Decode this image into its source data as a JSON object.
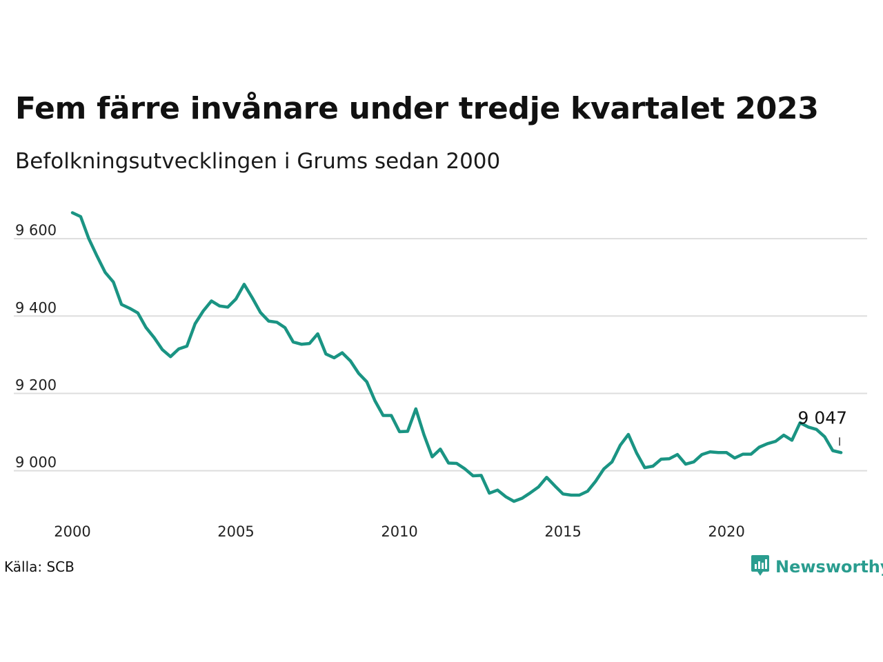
{
  "title": "Fem färre invånare under tredje kvartalet 2023",
  "subtitle": "Befolkningsutvecklingen i Grums sedan 2000",
  "source": "Källa: SCB",
  "brand": {
    "name": "Newsworthy",
    "icon": "newsworthy-logo-icon",
    "color": "#2a9d8f"
  },
  "colors": {
    "line": "#1a9483",
    "grid": "#dddddd",
    "text": "#111111"
  },
  "chart_data": {
    "type": "line",
    "title": "Fem färre invånare under tredje kvartalet 2023",
    "subtitle": "Befolkningsutvecklingen i Grums sedan 2000",
    "xlabel": "",
    "ylabel": "",
    "xlim": [
      2000,
      2024.3
    ],
    "ylim": [
      8880,
      9700
    ],
    "x_ticks": [
      2000,
      2005,
      2010,
      2015,
      2020
    ],
    "x_tick_labels": [
      "2000",
      "2005",
      "2010",
      "2015",
      "2020"
    ],
    "y_ticks": [
      9000,
      9200,
      9400,
      9600
    ],
    "y_tick_labels": [
      "9 000",
      "9 200",
      "9 400",
      "9 600"
    ],
    "grid": "horizontal",
    "legend": "none",
    "x": [
      2000.0,
      2000.25,
      2000.5,
      2000.75,
      2001.0,
      2001.25,
      2001.5,
      2001.75,
      2002.0,
      2002.25,
      2002.5,
      2002.75,
      2003.0,
      2003.25,
      2003.5,
      2003.75,
      2004.0,
      2004.25,
      2004.5,
      2004.75,
      2005.0,
      2005.25,
      2005.5,
      2005.75,
      2006.0,
      2006.25,
      2006.5,
      2006.75,
      2007.0,
      2007.25,
      2007.5,
      2007.75,
      2008.0,
      2008.25,
      2008.5,
      2008.75,
      2009.0,
      2009.25,
      2009.5,
      2009.75,
      2010.0,
      2010.25,
      2010.5,
      2010.75,
      2011.0,
      2011.25,
      2011.5,
      2011.75,
      2012.0,
      2012.25,
      2012.5,
      2012.75,
      2013.0,
      2013.25,
      2013.5,
      2013.75,
      2014.0,
      2014.25,
      2014.5,
      2014.75,
      2015.0,
      2015.25,
      2015.5,
      2015.75,
      2016.0,
      2016.25,
      2016.5,
      2016.75,
      2017.0,
      2017.25,
      2017.5,
      2017.75,
      2018.0,
      2018.25,
      2018.5,
      2018.75,
      2019.0,
      2019.25,
      2019.5,
      2019.75,
      2020.0,
      2020.25,
      2020.5,
      2020.75,
      2021.0,
      2021.25,
      2021.5,
      2021.75,
      2022.0,
      2022.25,
      2022.5,
      2022.75,
      2023.0,
      2023.25,
      2023.5
    ],
    "series": [
      {
        "values": [
          9667,
          9657,
          9600,
          9555,
          9513,
          9488,
          9430,
          9420,
          9408,
          9370,
          9344,
          9313,
          9295,
          9315,
          9322,
          9380,
          9413,
          9439,
          9426,
          9423,
          9444,
          9482,
          9447,
          9409,
          9387,
          9384,
          9370,
          9333,
          9327,
          9329,
          9354,
          9302,
          9292,
          9305,
          9284,
          9252,
          9230,
          9181,
          9143,
          9143,
          9101,
          9102,
          9160,
          9093,
          9036,
          9056,
          9020,
          9019,
          9005,
          8987,
          8988,
          8942,
          8950,
          8933,
          8921,
          8929,
          8943,
          8958,
          8983,
          8961,
          8940,
          8937,
          8937,
          8947,
          8973,
          9005,
          9023,
          9066,
          9094,
          9046,
          9008,
          9012,
          9030,
          9031,
          9042,
          9017,
          9023,
          9042,
          9049,
          9047,
          9047,
          9033,
          9043,
          9043,
          9061,
          9070,
          9076,
          9092,
          9079,
          9124,
          9113,
          9107,
          9088,
          9052,
          9047
        ]
      }
    ],
    "annotations": [
      {
        "x": 2023.5,
        "y": 9047,
        "text": "9 047"
      }
    ]
  }
}
